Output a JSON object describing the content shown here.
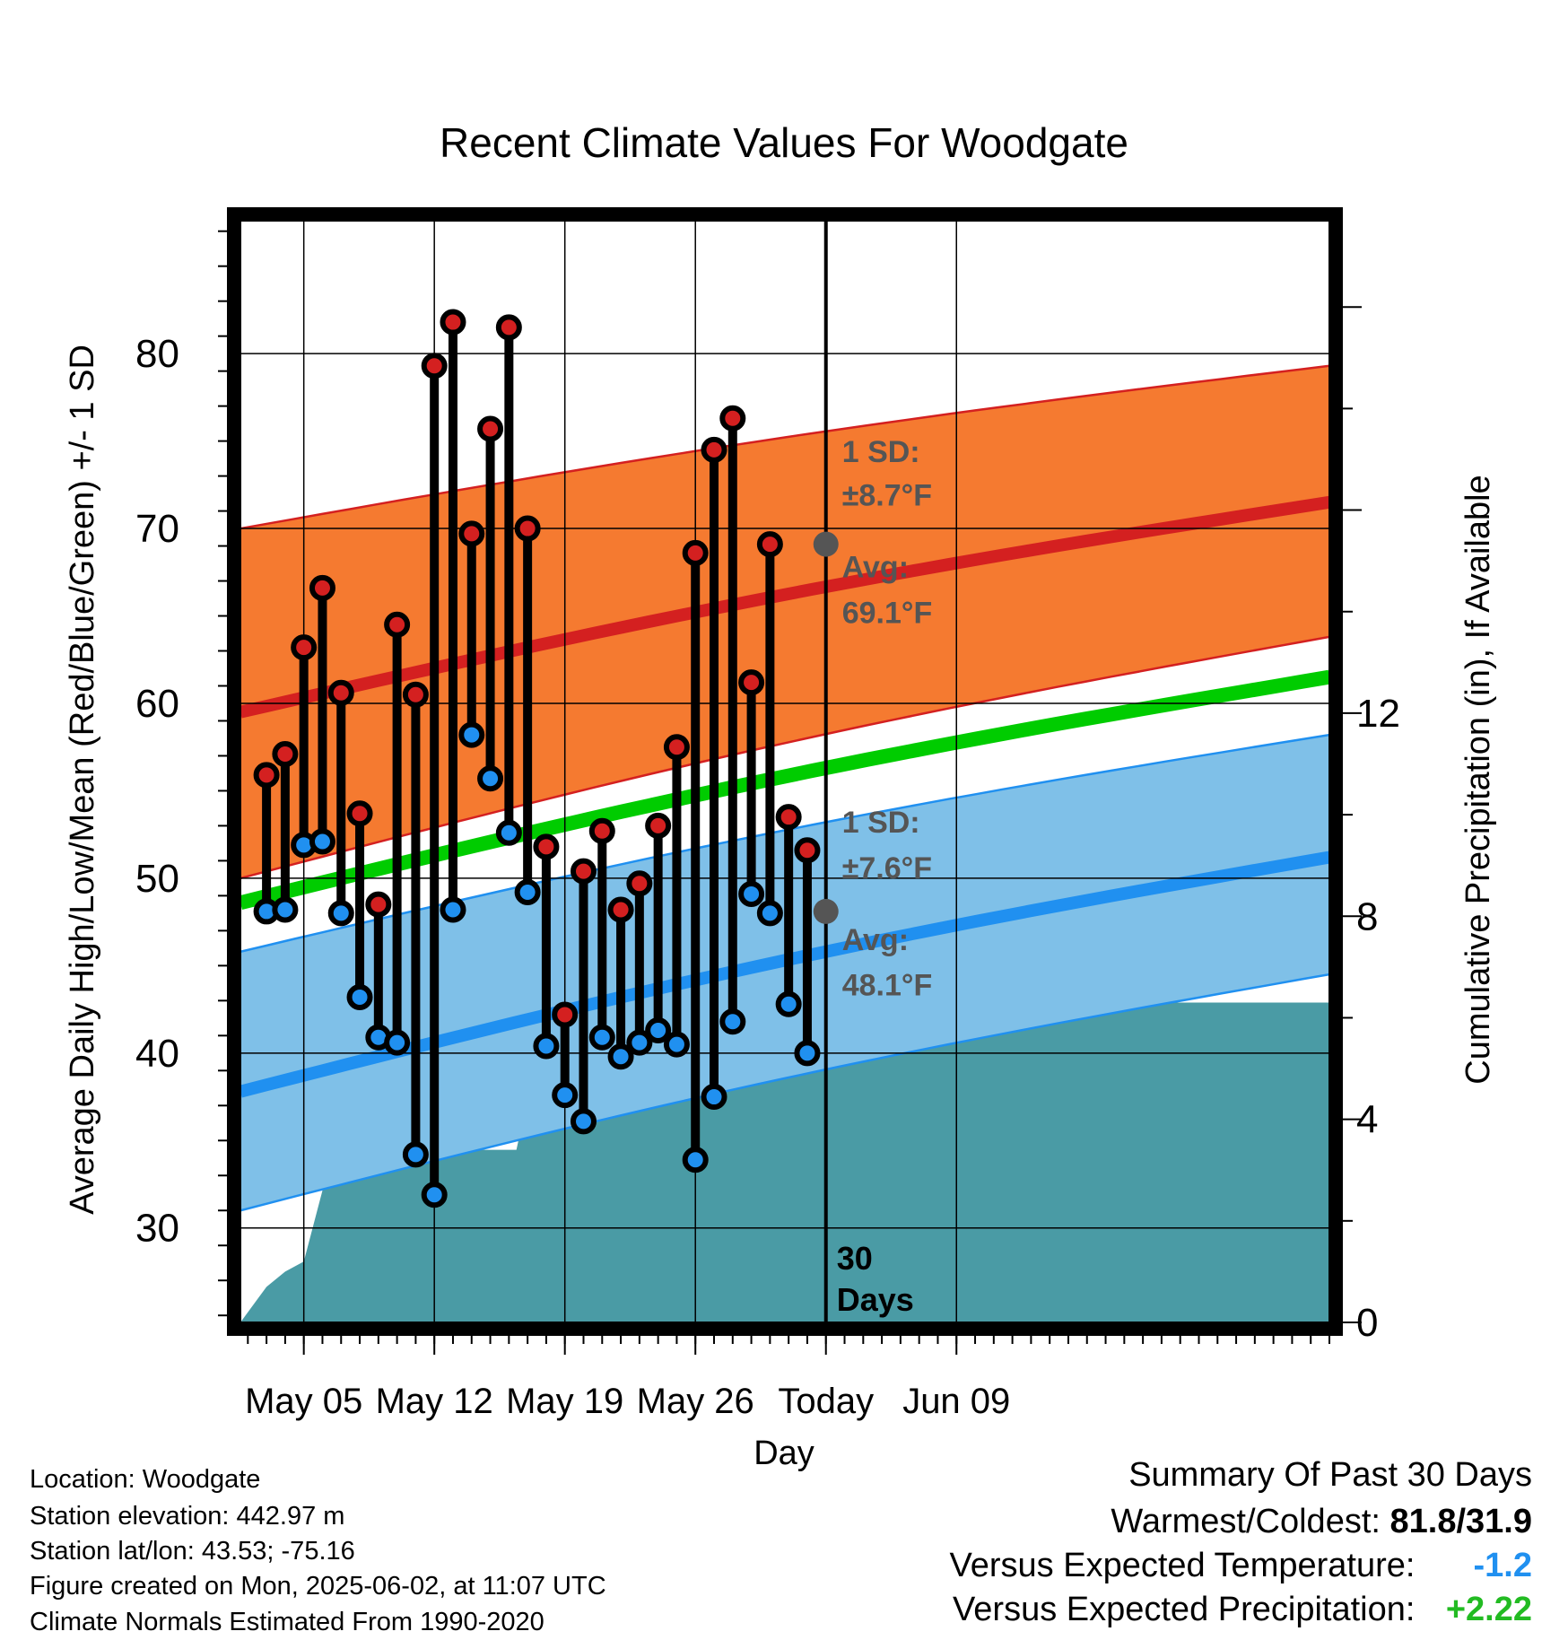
{
  "chart_data": {
    "type": "line",
    "title": "Recent Climate Values For Woodgate",
    "xlabel": "Day",
    "ylabel": "Average Daily High/Low/Mean (Red/Blue/Green) +/- 1 SD",
    "y2label": "Cumulative Precipitation (in), If Available",
    "ylim": [
      24.6,
      87.6
    ],
    "y2lim": [
      0,
      21.7
    ],
    "xlim": [
      1.6,
      60.0
    ],
    "y_ticks": [
      "30",
      "40",
      "50",
      "60",
      "70",
      "80"
    ],
    "y2_ticks": [
      "0",
      "4",
      "8",
      "12"
    ],
    "x_ticks": [
      {
        "x": 5,
        "label": "May 05"
      },
      {
        "x": 12,
        "label": "May 12"
      },
      {
        "x": 19,
        "label": "May 19"
      },
      {
        "x": 26,
        "label": "May 26"
      },
      {
        "x": 33,
        "label": "Today"
      },
      {
        "x": 40,
        "label": "Jun 09"
      }
    ],
    "grid": true,
    "today_x": 33,
    "days": [
      3,
      4,
      5,
      6,
      7,
      8,
      9,
      10,
      11,
      12,
      13,
      14,
      15,
      16,
      17,
      18,
      19,
      20,
      21,
      22,
      23,
      24,
      25,
      26,
      27,
      28,
      29,
      30,
      31,
      32
    ],
    "series": [
      {
        "name": "High",
        "color": "#d42020",
        "values": [
          55.9,
          57.1,
          63.2,
          66.6,
          60.6,
          53.7,
          48.5,
          64.5,
          60.5,
          79.3,
          81.8,
          69.7,
          75.7,
          81.5,
          70.0,
          51.8,
          42.2,
          50.4,
          52.7,
          48.2,
          49.7,
          53.0,
          57.5,
          68.6,
          74.5,
          76.3,
          61.2,
          69.1,
          53.5,
          51.6
        ]
      },
      {
        "name": "Low",
        "color": "#2090f0",
        "values": [
          48.1,
          48.2,
          51.9,
          52.1,
          48.0,
          43.2,
          40.9,
          40.6,
          34.2,
          31.9,
          48.2,
          58.2,
          55.7,
          52.6,
          49.2,
          40.4,
          37.6,
          36.1,
          40.9,
          39.8,
          40.6,
          41.3,
          40.5,
          33.9,
          37.5,
          41.8,
          49.1,
          48.0,
          42.8,
          40.0
        ]
      }
    ],
    "normals": {
      "high_avg": {
        "x": [
          1.6,
          60.0
        ],
        "y": [
          59.5,
          71.5
        ]
      },
      "high_sd_upper": {
        "x": [
          1.6,
          60.0
        ],
        "y": [
          70.0,
          79.3
        ]
      },
      "high_sd_lower": {
        "x": [
          1.6,
          60.0
        ],
        "y": [
          50.0,
          63.8
        ]
      },
      "mean": {
        "x": [
          1.6,
          60.0
        ],
        "y": [
          48.6,
          61.5
        ]
      },
      "low_avg": {
        "x": [
          1.6,
          60.0
        ],
        "y": [
          37.8,
          51.2
        ]
      },
      "low_sd_upper": {
        "x": [
          1.6,
          60.0
        ],
        "y": [
          45.8,
          58.2
        ]
      },
      "low_sd_lower": {
        "x": [
          1.6,
          60.0
        ],
        "y": [
          31.0,
          44.5
        ]
      },
      "colors": {
        "high_band": "#f57a30",
        "high_line": "#d42020",
        "mean": "#00cc00",
        "low_band": "#7fc0e8",
        "low_line": "#2090f0",
        "precip": "#4a9ba5"
      }
    },
    "precip": {
      "x": [
        1.6,
        2.5,
        3,
        4,
        5,
        6,
        6.6,
        7.4,
        8,
        8.6,
        9.4,
        10,
        11,
        13,
        15,
        16.4,
        17,
        17.6,
        18.6,
        19.6,
        20.8,
        22,
        22.6,
        24,
        26,
        28,
        29.2,
        30.2,
        33,
        60.0
      ],
      "y": [
        0,
        0.45,
        0.7,
        1.0,
        1.2,
        2.6,
        2.85,
        2.85,
        3.3,
        3.4,
        3.4,
        3.4,
        3.4,
        3.4,
        3.4,
        3.4,
        4.4,
        4.9,
        5.05,
        5.15,
        5.25,
        5.3,
        5.6,
        5.85,
        6.0,
        6.05,
        6.05,
        6.3,
        6.3,
        6.3
      ]
    },
    "annotations": {
      "high_sd": "1 SD:",
      "high_sd_val": "±8.7°F",
      "high_avg": "Avg:",
      "high_avg_val": "69.1°F",
      "low_sd": "1 SD:",
      "low_sd_val": "±7.6°F",
      "low_avg": "Avg:",
      "low_avg_val": "48.1°F",
      "period_num": "30",
      "period_unit": "Days",
      "today_high": 69.1,
      "today_low": 48.1
    }
  },
  "info": {
    "location": "Location: Woodgate",
    "elevation": "Station elevation: 442.97 m",
    "latlon": "Station lat/lon: 43.53; -75.16",
    "created": "Figure created on Mon, 2025-06-02, at 11:07 UTC",
    "normals": "Climate Normals Estimated From 1990-2020"
  },
  "summary": {
    "title": "Summary Of Past 30 Days",
    "warm_label": "Warmest/Coldest:",
    "warm_value": "81.8/31.9",
    "temp_label": "Versus Expected Temperature:",
    "temp_value": "-1.2",
    "temp_color": "#2090f0",
    "precip_label": "Versus Expected Precipitation:",
    "precip_value": "+2.22",
    "precip_color": "#22bb22"
  }
}
